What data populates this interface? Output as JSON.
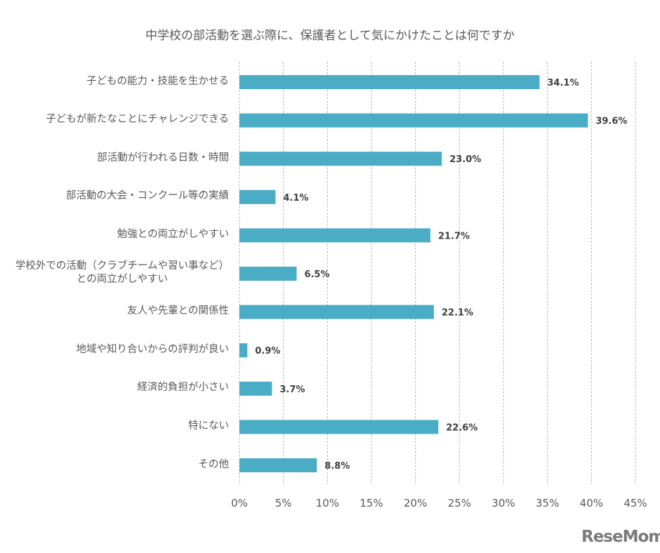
{
  "chart_data": {
    "type": "bar",
    "orientation": "horizontal",
    "title": "中学校の部活動を選ぶ際に、保護者として気にかけたことは何ですか",
    "categories": [
      "子どもの能力・技能を生かせる",
      "子どもが新たなことにチャレンジできる",
      "部活動が行われる日数・時間",
      "部活動の大会・コンクール等の実績",
      "勉強との両立がしやすい",
      "学校外での活動（クラブチームや習い事など）\nとの両立がしやすい",
      "友人や先輩との関係性",
      "地域や知り合いからの評判が良い",
      "経済的負担が小さい",
      "特にない",
      "その他"
    ],
    "values": [
      34.1,
      39.6,
      23.0,
      4.1,
      21.7,
      6.5,
      22.1,
      0.9,
      3.7,
      22.6,
      8.8
    ],
    "data_labels": [
      "34.1%",
      "39.6%",
      "23.0%",
      "4.1%",
      "21.7%",
      "6.5%",
      "22.1%",
      "0.9%",
      "3.7%",
      "22.6%",
      "8.8%"
    ],
    "xlim": [
      0,
      45
    ],
    "xticks": [
      "0%",
      "5%",
      "10%",
      "15%",
      "20%",
      "25%",
      "30%",
      "35%",
      "40%",
      "45%"
    ],
    "grid": true,
    "bar_color": "#4BACC6",
    "xlabel": "",
    "ylabel": ""
  },
  "logo": "ReseMom"
}
